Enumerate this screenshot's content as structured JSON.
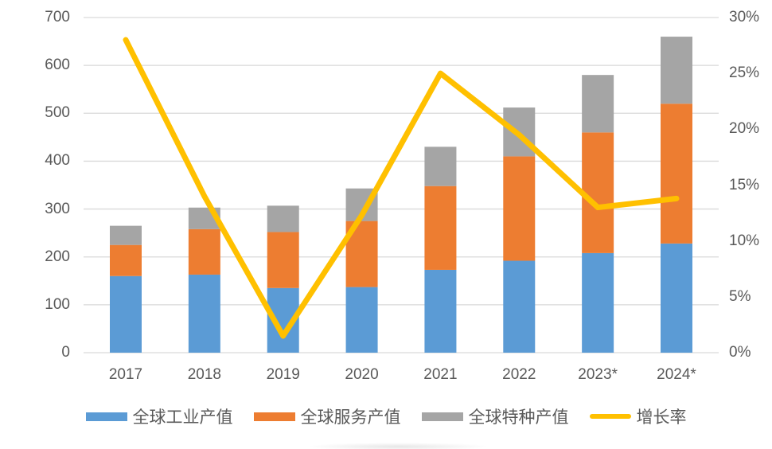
{
  "colors": {
    "background": "#FFFFFF",
    "text": "#595959",
    "gridline": "#D9D9D9",
    "bar_blue": "#5B9BD5",
    "bar_orange": "#ED7D31",
    "bar_gray": "#A5A5A5",
    "line_yellow": "#FFC000"
  },
  "chart_data": {
    "type": "combo",
    "bar_mode": "stacked",
    "title": "",
    "grid": true,
    "legend_position": "bottom",
    "categories": [
      "2017",
      "2018",
      "2019",
      "2020",
      "2021",
      "2022",
      "2023*",
      "2024*"
    ],
    "series": [
      {
        "name": "全球工业产值",
        "type": "bar",
        "color": "#5B9BD5",
        "values": [
          160,
          163,
          135,
          137,
          173,
          192,
          208,
          228
        ]
      },
      {
        "name": "全球服务产值",
        "type": "bar",
        "color": "#ED7D31",
        "values": [
          65,
          95,
          117,
          138,
          175,
          218,
          252,
          292
        ]
      },
      {
        "name": "全球特种产值",
        "type": "bar",
        "color": "#A5A5A5",
        "values": [
          40,
          45,
          55,
          68,
          82,
          102,
          120,
          140
        ]
      },
      {
        "name": "增长率",
        "type": "line",
        "axis": "right",
        "color": "#FFC000",
        "values": [
          28,
          14,
          1.5,
          12.3,
          25,
          19.5,
          13,
          13.8
        ]
      }
    ],
    "stacked_totals": [
      265,
      303,
      307,
      343,
      430,
      512,
      580,
      660
    ],
    "left_axis": {
      "min": 0,
      "max": 700,
      "step": 100,
      "ticks": [
        "0",
        "100",
        "200",
        "300",
        "400",
        "500",
        "600",
        "700"
      ]
    },
    "right_axis": {
      "min": 0,
      "max": 30,
      "step": 5,
      "ticks": [
        "0%",
        "5%",
        "10%",
        "15%",
        "20%",
        "25%",
        "30%"
      ]
    }
  }
}
